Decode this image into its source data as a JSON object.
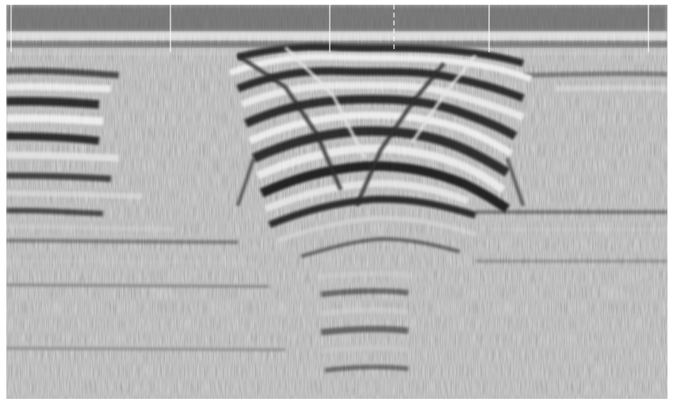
{
  "image": {
    "kind": "ground-penetrating-radar-radargram",
    "palette": {
      "background": "#ffffff",
      "noise_mid": "#8a8a8a",
      "dark": "#0a0a0a",
      "light": "#f5f5f5",
      "marker": "#ffffff"
    },
    "markers": {
      "solid_count": 5,
      "dashed_count": 1
    }
  }
}
